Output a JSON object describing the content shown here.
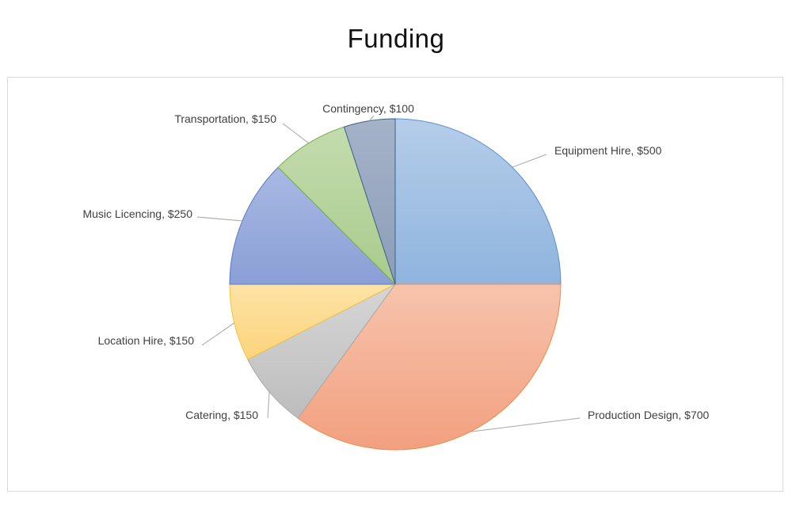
{
  "chart_data": {
    "type": "pie",
    "title": "Funding",
    "slices": [
      {
        "name": "Equipment Hire",
        "value": 500,
        "label": "Equipment Hire, $500",
        "color_top": "#b5cde9",
        "color_bottom": "#8fb4de",
        "stroke": "#5b8fd0"
      },
      {
        "name": "Production Design",
        "value": 700,
        "label": "Production Design, $700",
        "color_top": "#f7c3ad",
        "color_bottom": "#f2a07f",
        "stroke": "#ef8a47"
      },
      {
        "name": "Catering",
        "value": 150,
        "label": "Catering, $150",
        "color_top": "#d6d6d6",
        "color_bottom": "#bdbdbd",
        "stroke": "#a9a9a9"
      },
      {
        "name": "Location Hire",
        "value": 150,
        "label": "Location Hire, $150",
        "color_top": "#fde3a6",
        "color_bottom": "#fcd47c",
        "stroke": "#f5c33d"
      },
      {
        "name": "Music Licencing",
        "value": 250,
        "label": "Music Licencing, $250",
        "color_top": "#a9b9e3",
        "color_bottom": "#8a9fd6",
        "stroke": "#5b7ac4"
      },
      {
        "name": "Transportation",
        "value": 150,
        "label": "Transportation, $150",
        "color_top": "#c4dcae",
        "color_bottom": "#a8cb8c",
        "stroke": "#7cae54"
      },
      {
        "name": "Contingency",
        "value": 100,
        "label": "Contingency, $100",
        "color_top": "#a5b3c9",
        "color_bottom": "#8c9db8",
        "stroke": "#3f5f8a"
      }
    ],
    "start_angle": "12 o'clock",
    "direction": "clockwise",
    "legend": "none",
    "data_labels": "outside with leader lines"
  }
}
